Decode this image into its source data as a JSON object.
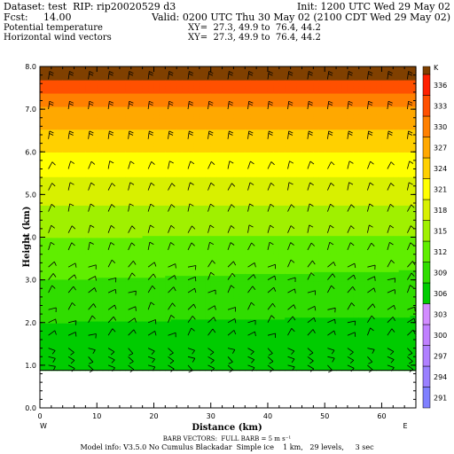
{
  "header": {
    "dataset": "Dataset: test  RIP: rip20020529 d3",
    "init": "Init: 1200 UTC Wed 29 May 02",
    "fcst": "Fcst:     14.00",
    "valid": "Valid: 0200 UTC Thu 30 May 02 (2100 CDT Wed 29 May 02)",
    "field1": "Potential temperature",
    "xy1": "XY=  27.3, 49.9 to  76.4, 44.2",
    "field2": "Horizontal wind vectors",
    "xy2": "XY=  27.3, 49.9 to  76.4, 44.2"
  },
  "footer": {
    "barb": "BARB VECTORS:  FULL BARB = 5 m s⁻¹",
    "model": "Model info: V3.5.0 No Cumulus Blackadar  Simple ice    1 km,   29 levels,     3 sec"
  },
  "chart_data": {
    "type": "heatmap",
    "xlabel": "Distance (km)",
    "ylabel": "Height (km)",
    "xlim": [
      0,
      66
    ],
    "ylim": [
      0,
      8
    ],
    "x_ticks": [
      0,
      10,
      20,
      30,
      40,
      50,
      60
    ],
    "y_ticks": [
      0.0,
      1.0,
      2.0,
      3.0,
      4.0,
      5.0,
      6.0,
      7.0,
      8.0
    ],
    "x_end_labels": [
      "W",
      "E"
    ],
    "terrain_height_km": 0.88,
    "colorbar": {
      "unit": "K",
      "levels": [
        291,
        294,
        297,
        300,
        303,
        306,
        309,
        312,
        315,
        318,
        321,
        324,
        327,
        330,
        333,
        336
      ],
      "colors": [
        "#8080ff",
        "#9a80ff",
        "#b080ff",
        "#c080ff",
        "#d28cff",
        "#00cc00",
        "#30dd00",
        "#60ee00",
        "#a0f000",
        "#d8f000",
        "#ffff00",
        "#ffd000",
        "#ffa800",
        "#ff8000",
        "#ff5000",
        "#ff2000"
      ],
      "top_color": "#804000"
    },
    "isentropes_K_at_height_km": [
      {
        "z": 0.9,
        "theta": 307.2
      },
      {
        "z": 2.0,
        "theta": 309.0
      },
      {
        "z": 3.0,
        "theta": 312.0
      },
      {
        "z": 4.0,
        "theta": 315.0
      },
      {
        "z": 5.0,
        "theta": 319.0
      },
      {
        "z": 6.0,
        "theta": 324.0
      },
      {
        "z": 7.0,
        "theta": 329.5
      },
      {
        "z": 7.7,
        "theta": 336.0
      },
      {
        "z": 8.0,
        "theta": 337.0
      }
    ],
    "wind_barb_levels_km": [
      1.0,
      1.2,
      1.4,
      1.7,
      2.0,
      2.3,
      2.7,
      3.0,
      3.3,
      3.7,
      4.1,
      4.6,
      5.1,
      5.6,
      6.3,
      7.0,
      7.7
    ],
    "wind_barb_x_km": [
      1.5,
      5,
      8.5,
      12,
      15.5,
      19,
      22.5,
      26,
      29.5,
      33,
      36.5,
      40,
      43.5,
      47,
      50.5,
      54,
      57.5,
      61,
      64.5
    ]
  }
}
